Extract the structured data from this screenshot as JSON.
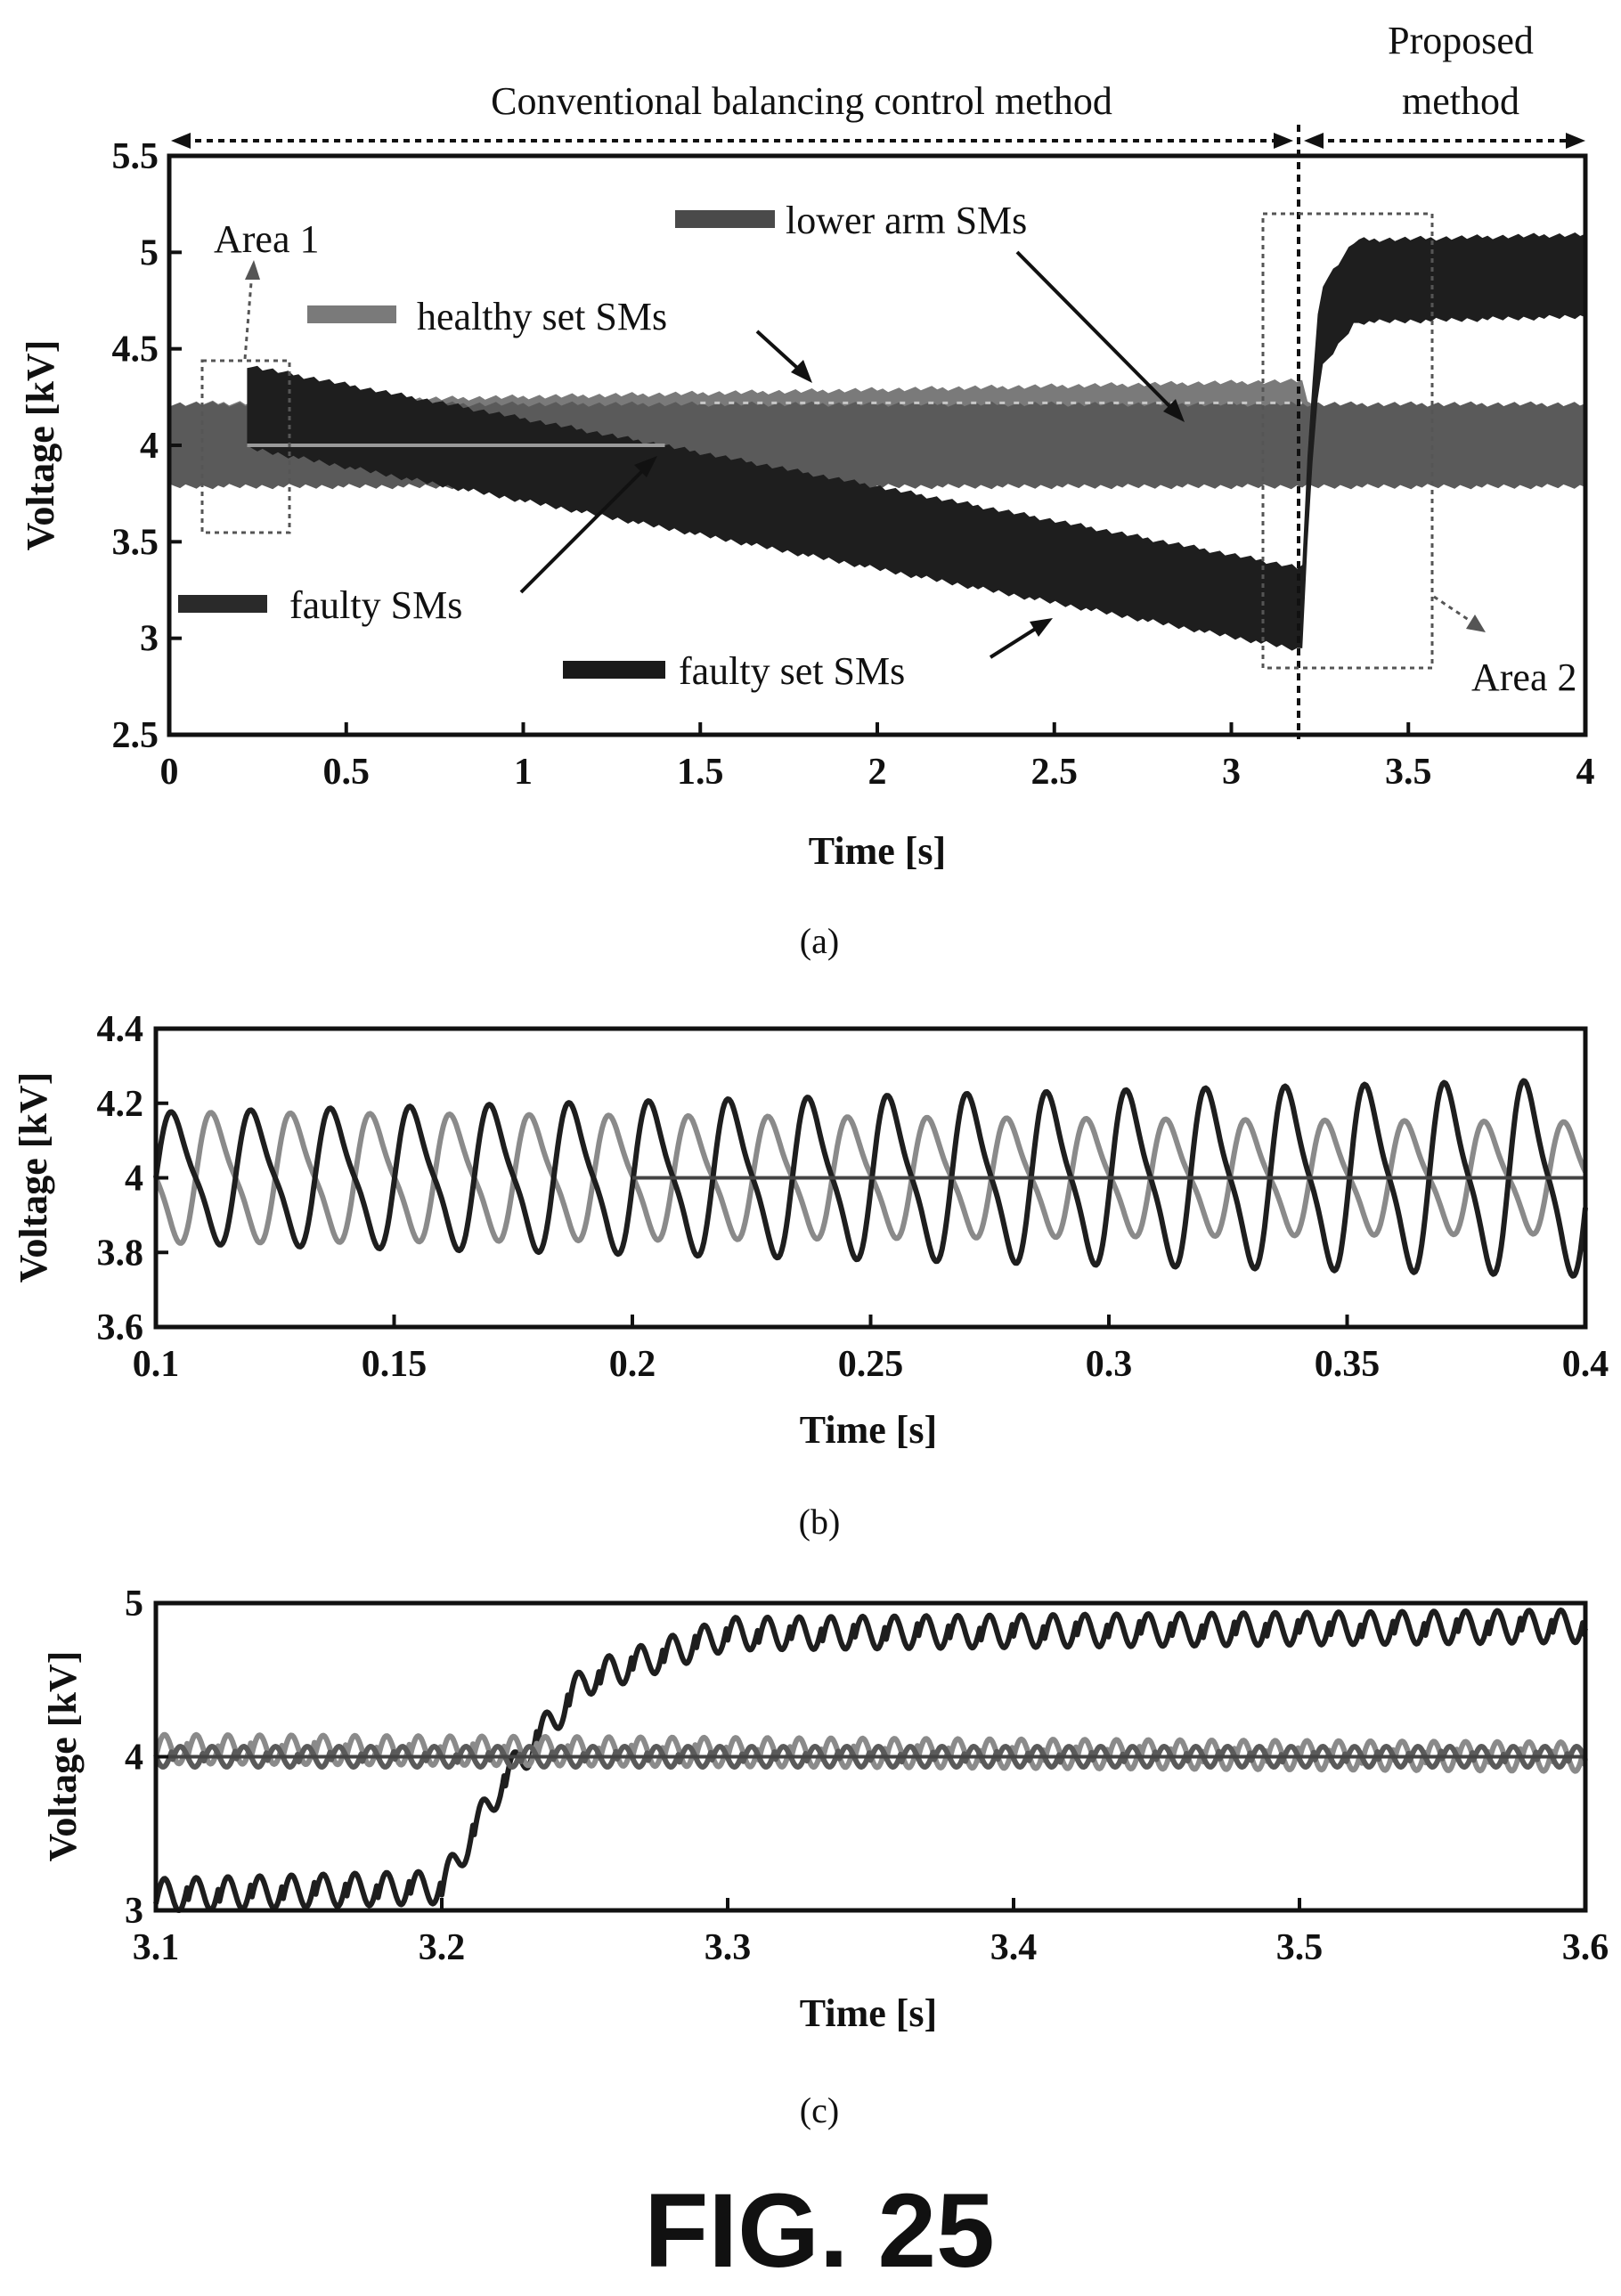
{
  "figure_label": "FIG. 25",
  "chart_data": [
    {
      "panel": "(a)",
      "type": "line",
      "xlabel": "Time [s]",
      "ylabel": "Voltage [kV]",
      "xlim": [
        0,
        4
      ],
      "ylim": [
        2.5,
        5.5
      ],
      "xticks": [
        "0",
        "0.5",
        "1",
        "1.5",
        "2",
        "2.5",
        "3",
        "3.5",
        "4"
      ],
      "yticks": [
        "2.5",
        "3",
        "3.5",
        "4",
        "4.5",
        "5",
        "5.5"
      ],
      "grid": false,
      "event_time": 3.2,
      "regions": {
        "conventional": "Conventional balancing control method",
        "proposed": "Proposed method"
      },
      "zoom_areas": [
        {
          "label": "Area 1",
          "x": [
            0.15,
            0.38
          ],
          "y": [
            3.6,
            4.45
          ]
        },
        {
          "label": "Area 2",
          "x": [
            3.12,
            3.58
          ],
          "y": [
            2.88,
            5.2
          ]
        }
      ],
      "series": [
        {
          "name": "healthy set SMs",
          "color": "#7a7a7a",
          "center": [
            [
              0,
              4.0
            ],
            [
              3.2,
              4.12
            ],
            [
              3.22,
              4.0
            ],
            [
              4,
              4.0
            ]
          ],
          "ripple": 0.2
        },
        {
          "name": "lower arm SMs",
          "color": "#5a5a5a",
          "center": [
            [
              0,
              4.0
            ],
            [
              4,
              4.0
            ]
          ],
          "ripple": 0.2
        },
        {
          "name": "faulty SMs",
          "color": "#3a3a3a",
          "center": [
            [
              0.22,
              4.0
            ],
            [
              1.4,
              4.0
            ]
          ],
          "ripple": 0.01
        },
        {
          "name": "faulty set SMs",
          "color": "#1e1e1e",
          "center": [
            [
              0.22,
              4.2
            ],
            [
              3.2,
              3.15
            ],
            [
              3.22,
              3.9
            ],
            [
              3.25,
              4.6
            ],
            [
              3.35,
              4.85
            ],
            [
              4,
              4.88
            ]
          ],
          "ripple": 0.2
        }
      ]
    },
    {
      "panel": "(b)",
      "type": "line",
      "xlabel": "Time [s]",
      "ylabel": "Voltage [kV]",
      "xlim": [
        0.1,
        0.4
      ],
      "ylim": [
        3.6,
        4.4
      ],
      "xticks": [
        "0.1",
        "0.15",
        "0.2",
        "0.25",
        "0.3",
        "0.35",
        "0.4"
      ],
      "yticks": [
        "3.6",
        "3.8",
        "4",
        "4.2",
        "4.4"
      ],
      "grid": false,
      "ripple_period": 0.0167,
      "series": [
        {
          "name": "healthy",
          "color": "#8a8a8a",
          "start_amp": 0.2,
          "end_amp": 0.17,
          "phase": 3.14
        },
        {
          "name": "faulty set",
          "color": "#1e1e1e",
          "start_amp": 0.2,
          "end_amp": 0.3,
          "phase": 0
        },
        {
          "name": "reference",
          "color": "#444444",
          "value": 4.0,
          "from": 0.2
        }
      ]
    },
    {
      "panel": "(c)",
      "type": "line",
      "xlabel": "Time [s]",
      "ylabel": "Voltage [kV]",
      "xlim": [
        3.1,
        3.6
      ],
      "ylim": [
        3,
        5
      ],
      "xticks": [
        "3.1",
        "3.2",
        "3.3",
        "3.4",
        "3.5",
        "3.6"
      ],
      "yticks": [
        "3",
        "4",
        "5"
      ],
      "grid": false,
      "ripple_period": 0.0111,
      "series": [
        {
          "name": "faulty set",
          "color": "#1e1e1e",
          "center": [
            [
              3.1,
              3.1
            ],
            [
              3.2,
              3.15
            ],
            [
              3.22,
              3.8
            ],
            [
              3.25,
              4.5
            ],
            [
              3.3,
              4.8
            ],
            [
              3.6,
              4.85
            ]
          ],
          "ripple": 0.19
        },
        {
          "name": "healthy",
          "color": "#8a8a8a",
          "center": [
            [
              3.1,
              4.05
            ],
            [
              3.6,
              4.0
            ]
          ],
          "ripple": 0.17
        },
        {
          "name": "lower arm",
          "color": "#5a5a5a",
          "center": [
            [
              3.1,
              4.0
            ],
            [
              3.6,
              4.0
            ]
          ],
          "ripple": 0.12
        },
        {
          "name": "reference",
          "color": "#444444",
          "value": 4.0
        }
      ]
    }
  ],
  "panel_a": {
    "header_left": "Conventional balancing control method",
    "header_right_1": "Proposed",
    "header_right_2": "method",
    "area1": "Area 1",
    "area2": "Area 2",
    "legend_lower": "lower arm SMs",
    "legend_healthy": "healthy set SMs",
    "legend_faulty": "faulty SMs",
    "legend_faulty_set": "faulty set SMs"
  }
}
